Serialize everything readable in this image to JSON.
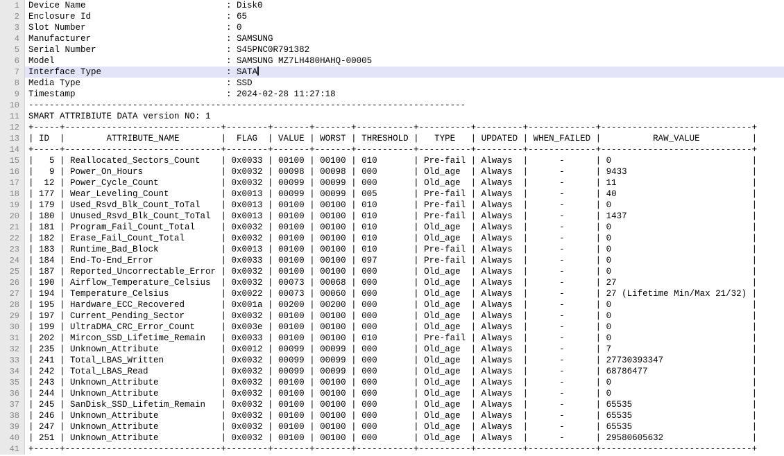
{
  "colors": {
    "background": "#ffffff",
    "text": "#000000",
    "gutter_bg": "#e9e9e9",
    "line_number": "#868686",
    "current_line_bg": "#e4e4f8",
    "caret": "#14141a"
  },
  "device_info": {
    "label_pad": 38,
    "fields": [
      {
        "label": "Device Name",
        "value": "Disk0"
      },
      {
        "label": "Enclosure Id",
        "value": "65"
      },
      {
        "label": "Slot Number",
        "value": "0"
      },
      {
        "label": "Manufacturer",
        "value": "SAMSUNG"
      },
      {
        "label": "Serial Number",
        "value": "S45PNC0R791382"
      },
      {
        "label": "Model",
        "value": "SAMSUNG MZ7LH480HAHQ-00005"
      },
      {
        "label": "Interface Type",
        "value": "SATA"
      },
      {
        "label": "Media Type",
        "value": "SSD"
      },
      {
        "label": "Timestamp",
        "value": "2024-02-28 11:27:18"
      }
    ]
  },
  "separator_length": 84,
  "section_title": "SMART ATTRIBIUTE DATA version NO: 1",
  "cursor": {
    "line": 7,
    "after_text": "SATA"
  },
  "table": {
    "columns": [
      {
        "label": "ID",
        "width": 5,
        "align": "right"
      },
      {
        "label": "ATTRIBUTE_NAME",
        "width": 30,
        "align": "left"
      },
      {
        "label": "FLAG",
        "width": 8,
        "align": "left"
      },
      {
        "label": "VALUE",
        "width": 7,
        "align": "left"
      },
      {
        "label": "WORST",
        "width": 7,
        "align": "left"
      },
      {
        "label": "THRESHOLD",
        "width": 11,
        "align": "left"
      },
      {
        "label": "TYPE",
        "width": 10,
        "align": "left"
      },
      {
        "label": "UPDATED",
        "width": 9,
        "align": "left"
      },
      {
        "label": "WHEN_FAILED",
        "width": 13,
        "align": "center"
      },
      {
        "label": "RAW_VALUE",
        "width": 29,
        "align": "left"
      }
    ],
    "rows": [
      [
        "5",
        "Reallocated_Sectors_Count",
        "0x0033",
        "00100",
        "00100",
        "010",
        "Pre-fail",
        "Always",
        "-",
        "0"
      ],
      [
        "9",
        "Power_On_Hours",
        "0x0032",
        "00098",
        "00098",
        "000",
        "Old_age",
        "Always",
        "-",
        "9433"
      ],
      [
        "12",
        "Power_Cycle_Count",
        "0x0032",
        "00099",
        "00099",
        "000",
        "Old_age",
        "Always",
        "-",
        "11"
      ],
      [
        "177",
        "Wear_Leveling_Count",
        "0x0013",
        "00099",
        "00099",
        "005",
        "Pre-fail",
        "Always",
        "-",
        "40"
      ],
      [
        "179",
        "Used_Rsvd_Blk_Count_ToTal",
        "0x0013",
        "00100",
        "00100",
        "010",
        "Pre-fail",
        "Always",
        "-",
        "0"
      ],
      [
        "180",
        "Unused_Rsvd_Blk_Count_ToTal",
        "0x0013",
        "00100",
        "00100",
        "010",
        "Pre-fail",
        "Always",
        "-",
        "1437"
      ],
      [
        "181",
        "Program_Fail_Count_Total",
        "0x0032",
        "00100",
        "00100",
        "010",
        "Old_age",
        "Always",
        "-",
        "0"
      ],
      [
        "182",
        "Erase_Fail_Count_Total",
        "0x0032",
        "00100",
        "00100",
        "010",
        "Old_age",
        "Always",
        "-",
        "0"
      ],
      [
        "183",
        "Runtime_Bad_Block",
        "0x0013",
        "00100",
        "00100",
        "010",
        "Pre-fail",
        "Always",
        "-",
        "0"
      ],
      [
        "184",
        "End-To-End_Error",
        "0x0033",
        "00100",
        "00100",
        "097",
        "Pre-fail",
        "Always",
        "-",
        "0"
      ],
      [
        "187",
        "Reported_Uncorrectable_Error",
        "0x0032",
        "00100",
        "00100",
        "000",
        "Old_age",
        "Always",
        "-",
        "0"
      ],
      [
        "190",
        "Airflow_Temperature_Celsius",
        "0x0032",
        "00073",
        "00068",
        "000",
        "Old_age",
        "Always",
        "-",
        "27"
      ],
      [
        "194",
        "Temperature_Celsius",
        "0x0022",
        "00073",
        "00060",
        "000",
        "Old_age",
        "Always",
        "-",
        "27 (Lifetime Min/Max 21/32)"
      ],
      [
        "195",
        "Hardware_ECC_Recovered",
        "0x001a",
        "00200",
        "00200",
        "000",
        "Old_age",
        "Always",
        "-",
        "0"
      ],
      [
        "197",
        "Current_Pending_Sector",
        "0x0032",
        "00100",
        "00100",
        "000",
        "Old_age",
        "Always",
        "-",
        "0"
      ],
      [
        "199",
        "UltraDMA_CRC_Error_Count",
        "0x003e",
        "00100",
        "00100",
        "000",
        "Old_age",
        "Always",
        "-",
        "0"
      ],
      [
        "202",
        "Mircon_SSD_Lifetime_Remain",
        "0x0033",
        "00100",
        "00100",
        "010",
        "Pre-fail",
        "Always",
        "-",
        "0"
      ],
      [
        "235",
        "Unknown_Attribute",
        "0x0012",
        "00099",
        "00099",
        "000",
        "Old_age",
        "Always",
        "-",
        "7"
      ],
      [
        "241",
        "Total_LBAS_Written",
        "0x0032",
        "00099",
        "00099",
        "000",
        "Old_age",
        "Always",
        "-",
        "27730393347"
      ],
      [
        "242",
        "Total_LBAS_Read",
        "0x0032",
        "00099",
        "00099",
        "000",
        "Old_age",
        "Always",
        "-",
        "68786477"
      ],
      [
        "243",
        "Unknown_Attribute",
        "0x0032",
        "00100",
        "00100",
        "000",
        "Old_age",
        "Always",
        "-",
        "0"
      ],
      [
        "244",
        "Unknown_Attribute",
        "0x0032",
        "00100",
        "00100",
        "000",
        "Old_age",
        "Always",
        "-",
        "0"
      ],
      [
        "245",
        "SanDisk_SSD_Lifetim_Remain",
        "0x0032",
        "00100",
        "00100",
        "000",
        "Old_age",
        "Always",
        "-",
        "65535"
      ],
      [
        "246",
        "Unknown_Attribute",
        "0x0032",
        "00100",
        "00100",
        "000",
        "Old_age",
        "Always",
        "-",
        "65535"
      ],
      [
        "247",
        "Unknown_Attribute",
        "0x0032",
        "00100",
        "00100",
        "000",
        "Old_age",
        "Always",
        "-",
        "65535"
      ],
      [
        "251",
        "Unknown_Attribute",
        "0x0032",
        "00100",
        "00100",
        "000",
        "Old_age",
        "Always",
        "-",
        "29580605632"
      ]
    ]
  }
}
